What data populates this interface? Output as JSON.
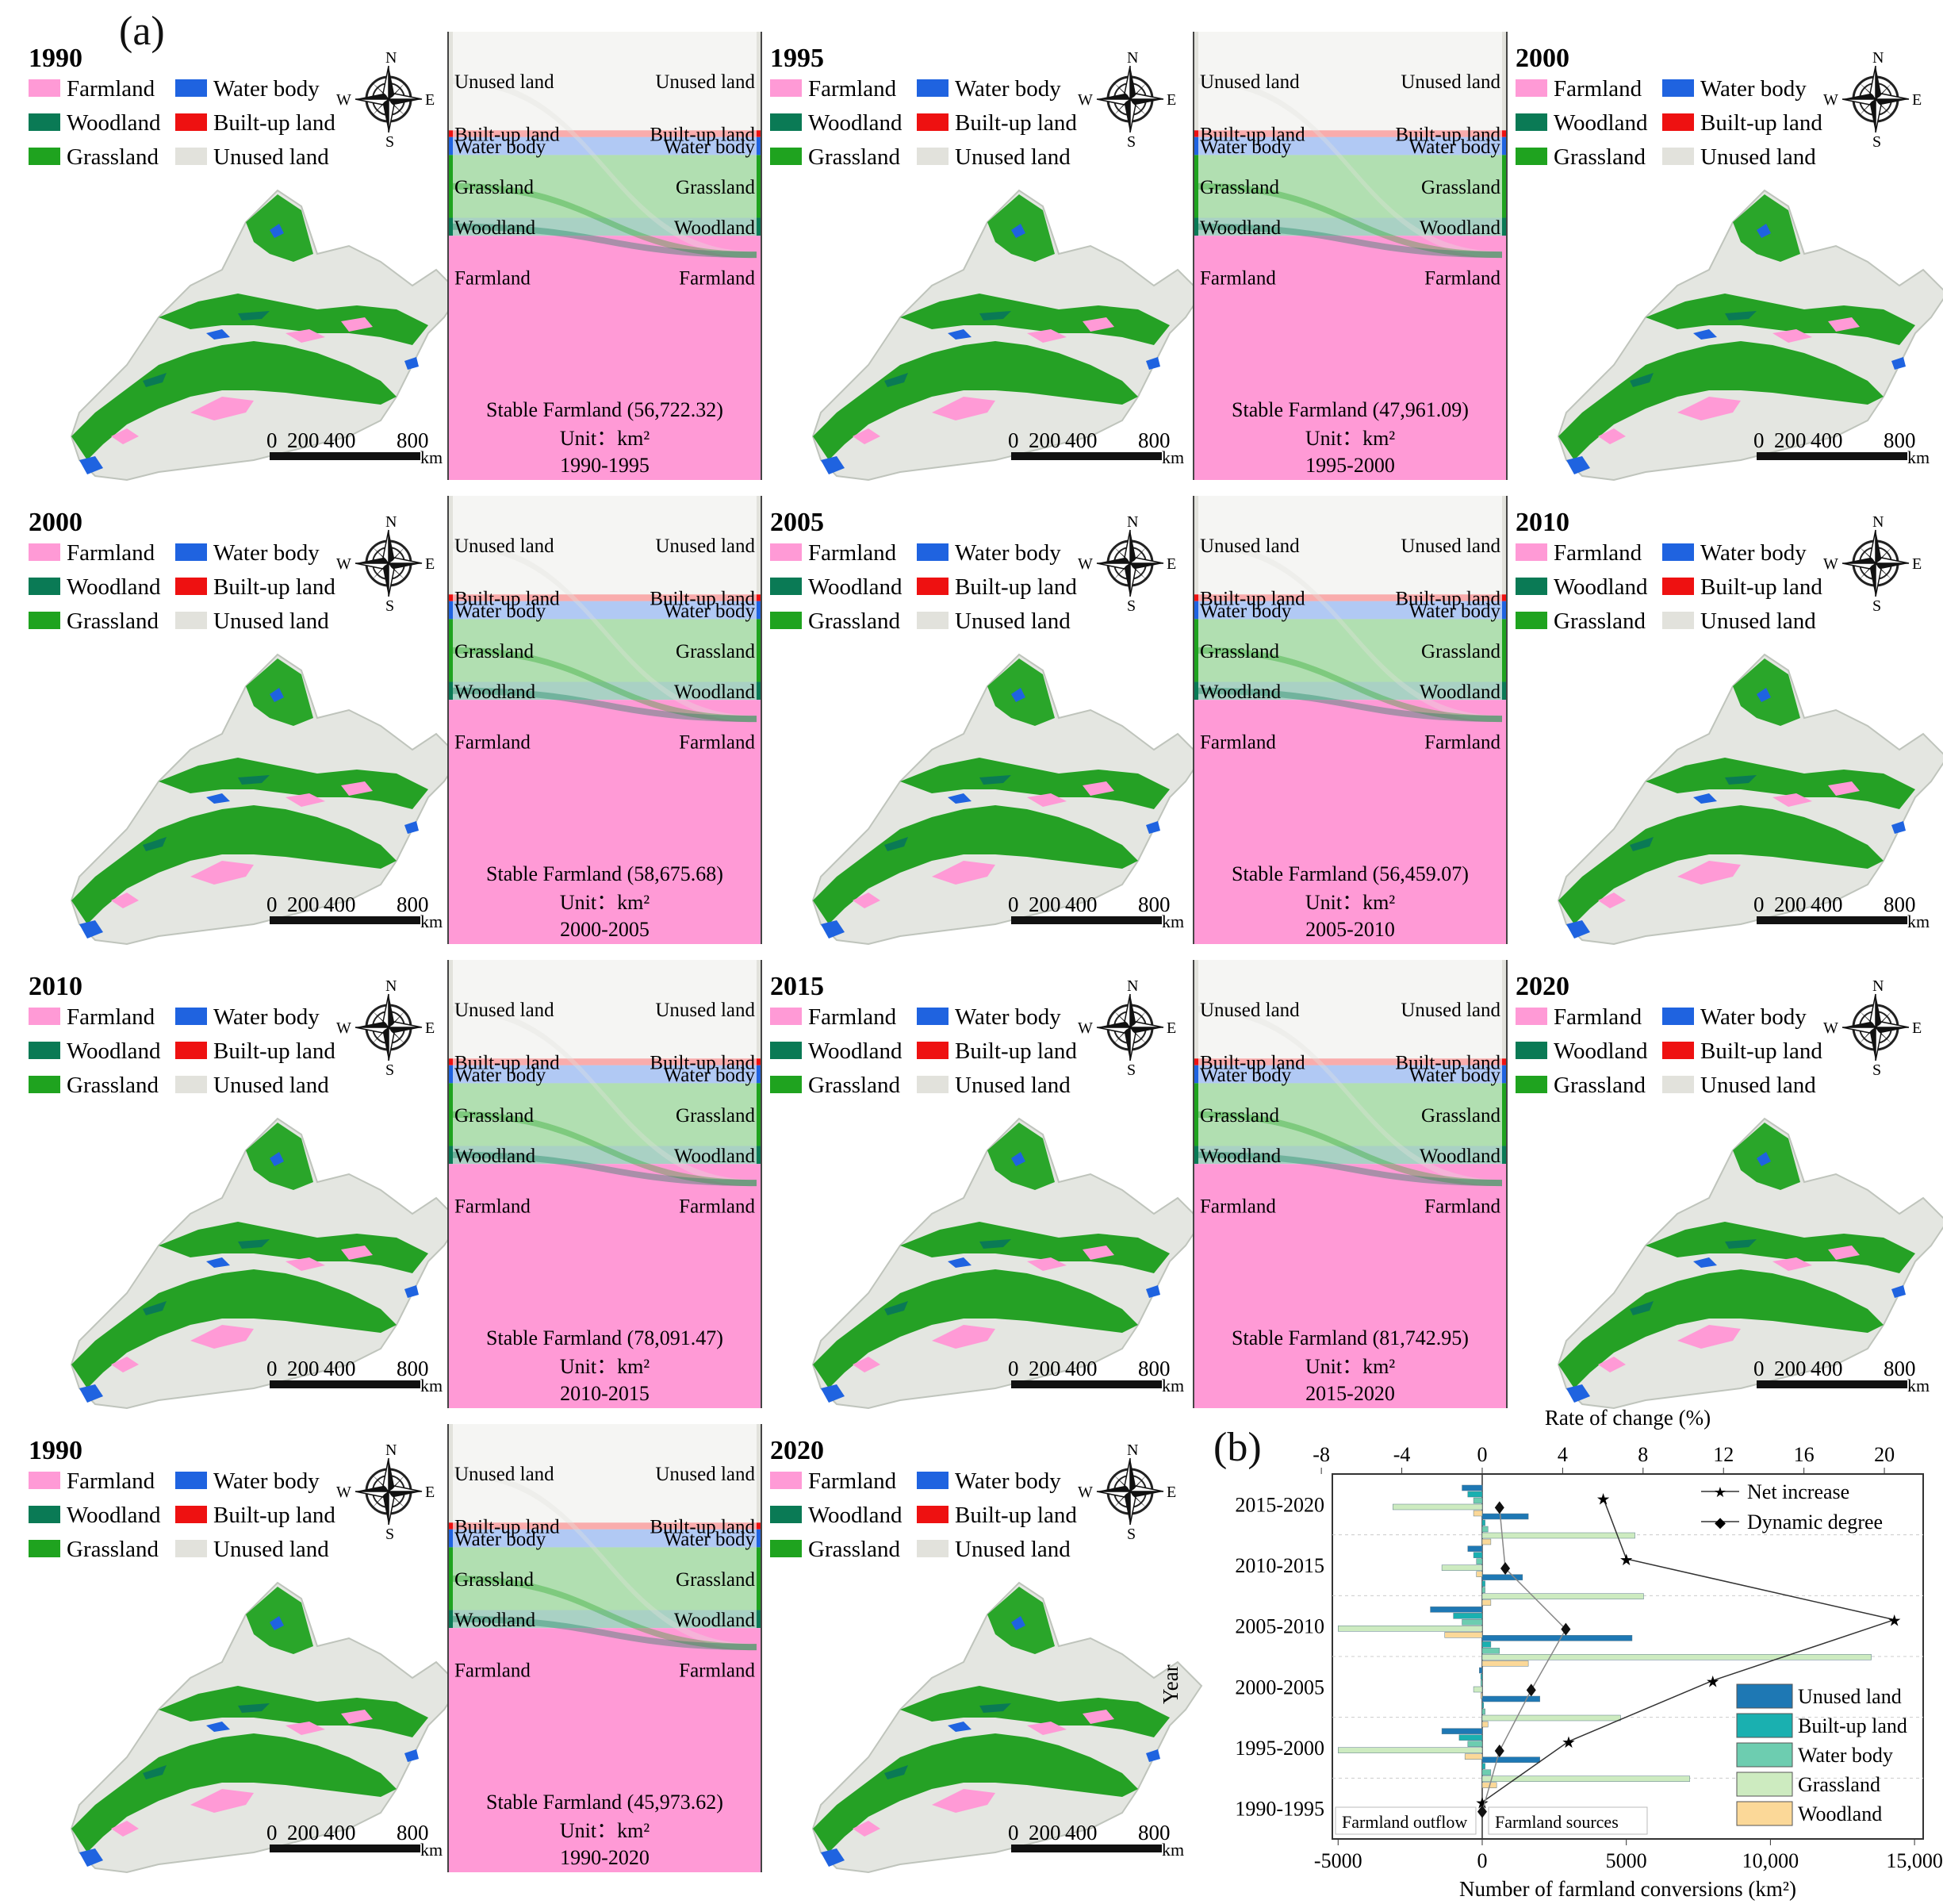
{
  "figure": {
    "label_a": "(a)",
    "label_b": "(b)",
    "legend_items": [
      {
        "name": "Farmland",
        "color": "#ff9ad6"
      },
      {
        "name": "Water body",
        "color": "#1f63e0"
      },
      {
        "name": "Woodland",
        "color": "#0a7a55"
      },
      {
        "name": "Built-up land",
        "color": "#ee1111"
      },
      {
        "name": "Grassland",
        "color": "#1fa31f"
      },
      {
        "name": "Unused land",
        "color": "#e2e2dc"
      }
    ],
    "compass": {
      "n": "N",
      "s": "S",
      "e": "E",
      "w": "W"
    },
    "scale": {
      "t0": "0",
      "t1": "200",
      "t2": "400",
      "t3": "800",
      "unit": "km"
    },
    "map_years": [
      [
        "1990",
        "1995",
        "2000"
      ],
      [
        "2000",
        "2005",
        "2010"
      ],
      [
        "2010",
        "2015",
        "2020"
      ],
      [
        "1990",
        "2020"
      ]
    ],
    "sankeys": [
      {
        "period": "1990-1995",
        "stable": "Stable Farmland (56,722.32)",
        "unit": "Unit：km²",
        "left": [
          "Unused land",
          "Built-up land",
          "Water body",
          "Grassland",
          "Woodland",
          "Farmland"
        ],
        "right": [
          "Unused land",
          "Built-up land",
          "Water body",
          "Grassland",
          "Woodland",
          "Farmland"
        ]
      },
      {
        "period": "1995-2000",
        "stable": "Stable Farmland (47,961.09)",
        "unit": "Unit：km²",
        "left": [
          "Unused land",
          "Built-up land",
          "Water body",
          "Grassland",
          "Woodland",
          "Farmland"
        ],
        "right": [
          "Unused land",
          "Built-up land",
          "Water body",
          "Grassland",
          "Woodland",
          "Farmland"
        ]
      },
      {
        "period": "2000-2005",
        "stable": "Stable Farmland (58,675.68)",
        "unit": "Unit：km²",
        "left": [
          "Unused land",
          "Built-up land",
          "Water body",
          "Grassland",
          "Woodland",
          "Farmland"
        ],
        "right": [
          "Unused land",
          "Built-up land",
          "Water body",
          "Grassland",
          "Woodland",
          "Farmland"
        ]
      },
      {
        "period": "2005-2010",
        "stable": "Stable Farmland (56,459.07)",
        "unit": "Unit：km²",
        "left": [
          "Unused land",
          "Built-up land",
          "Water body",
          "Grassland",
          "Woodland",
          "Farmland"
        ],
        "right": [
          "Unused land",
          "Built-up land",
          "Water body",
          "Grassland",
          "Woodland",
          "Farmland"
        ]
      },
      {
        "period": "2010-2015",
        "stable": "Stable Farmland (78,091.47)",
        "unit": "Unit：km²",
        "left": [
          "Unused land",
          "Built-up land",
          "Water body",
          "Grassland",
          "Woodland",
          "Farmland"
        ],
        "right": [
          "Unused land",
          "Built-up land",
          "Water body",
          "Grassland",
          "Woodland",
          "Farmland"
        ]
      },
      {
        "period": "2015-2020",
        "stable": "Stable Farmland (81,742.95)",
        "unit": "Unit：km²",
        "left": [
          "Unused land",
          "Built-up land",
          "Water body",
          "Grassland",
          "Woodland",
          "Farmland"
        ],
        "right": [
          "Unused land",
          "Built-up land",
          "Water body",
          "Grassland",
          "Woodland",
          "Farmland"
        ]
      },
      {
        "period": "1990-2020",
        "stable": "Stable Farmland (45,973.62)",
        "unit": "Unit：km²",
        "left": [
          "Unused land",
          "Built-up land",
          "Water body",
          "Grassland",
          "Woodland",
          "Farmland"
        ],
        "right": [
          "Unused land",
          "Built-up land",
          "Water body",
          "Grassland",
          "Woodland",
          "Farmland"
        ]
      }
    ]
  },
  "chart_data": {
    "type": "bar",
    "orientation": "horizontal",
    "top_axis_label": "Rate of change (%)",
    "top_ticks": [
      -8,
      -4,
      0,
      4,
      8,
      12,
      16,
      20
    ],
    "bottom_axis_label": "Number of farmland conversions (km²)",
    "bottom_ticks": [
      "-5000",
      "0",
      "5000",
      "10,000",
      "15,000"
    ],
    "bottom_tick_values": [
      -5000,
      0,
      5000,
      10000,
      15000
    ],
    "xlim": [
      -5200,
      15300
    ],
    "y_label": "Year",
    "categories": [
      "2015-2020",
      "2010-2015",
      "2005-2010",
      "2000-2005",
      "1995-2000",
      "1990-1995"
    ],
    "left_note": "Farmland outflow",
    "right_note": "Farmland sources",
    "series": [
      {
        "name": "Unused land",
        "color": "#1e78b4",
        "outflow": [
          -700,
          -500,
          -1800,
          -100,
          -1400,
          0
        ],
        "sources": [
          1600,
          1400,
          5200,
          2000,
          2000,
          0
        ]
      },
      {
        "name": "Built-up land",
        "color": "#1ab0b0",
        "outflow": [
          -500,
          -300,
          -1000,
          -50,
          -800,
          0
        ],
        "sources": [
          100,
          100,
          300,
          50,
          100,
          0
        ]
      },
      {
        "name": "Water body",
        "color": "#6dcdb0",
        "outflow": [
          -300,
          -200,
          -700,
          -50,
          -500,
          0
        ],
        "sources": [
          200,
          100,
          600,
          100,
          300,
          0
        ]
      },
      {
        "name": "Grassland",
        "color": "#cdebc0",
        "outflow": [
          -3100,
          -1400,
          -5000,
          -300,
          -5000,
          0
        ],
        "sources": [
          5300,
          5600,
          13500,
          4800,
          7200,
          0
        ]
      },
      {
        "name": "Woodland",
        "color": "#fbd898",
        "outflow": [
          -300,
          -200,
          -1300,
          -50,
          -600,
          0
        ],
        "sources": [
          300,
          300,
          1600,
          200,
          500,
          0
        ]
      }
    ],
    "line_series": [
      {
        "name": "Net increase",
        "marker": "star",
        "values": [
          4200,
          5000,
          14300,
          8000,
          3000,
          0
        ]
      },
      {
        "name": "Dynamic degree",
        "marker": "diamond",
        "values": [
          600,
          800,
          2900,
          1700,
          600,
          0
        ]
      }
    ],
    "legend_position": "bottom-right"
  }
}
